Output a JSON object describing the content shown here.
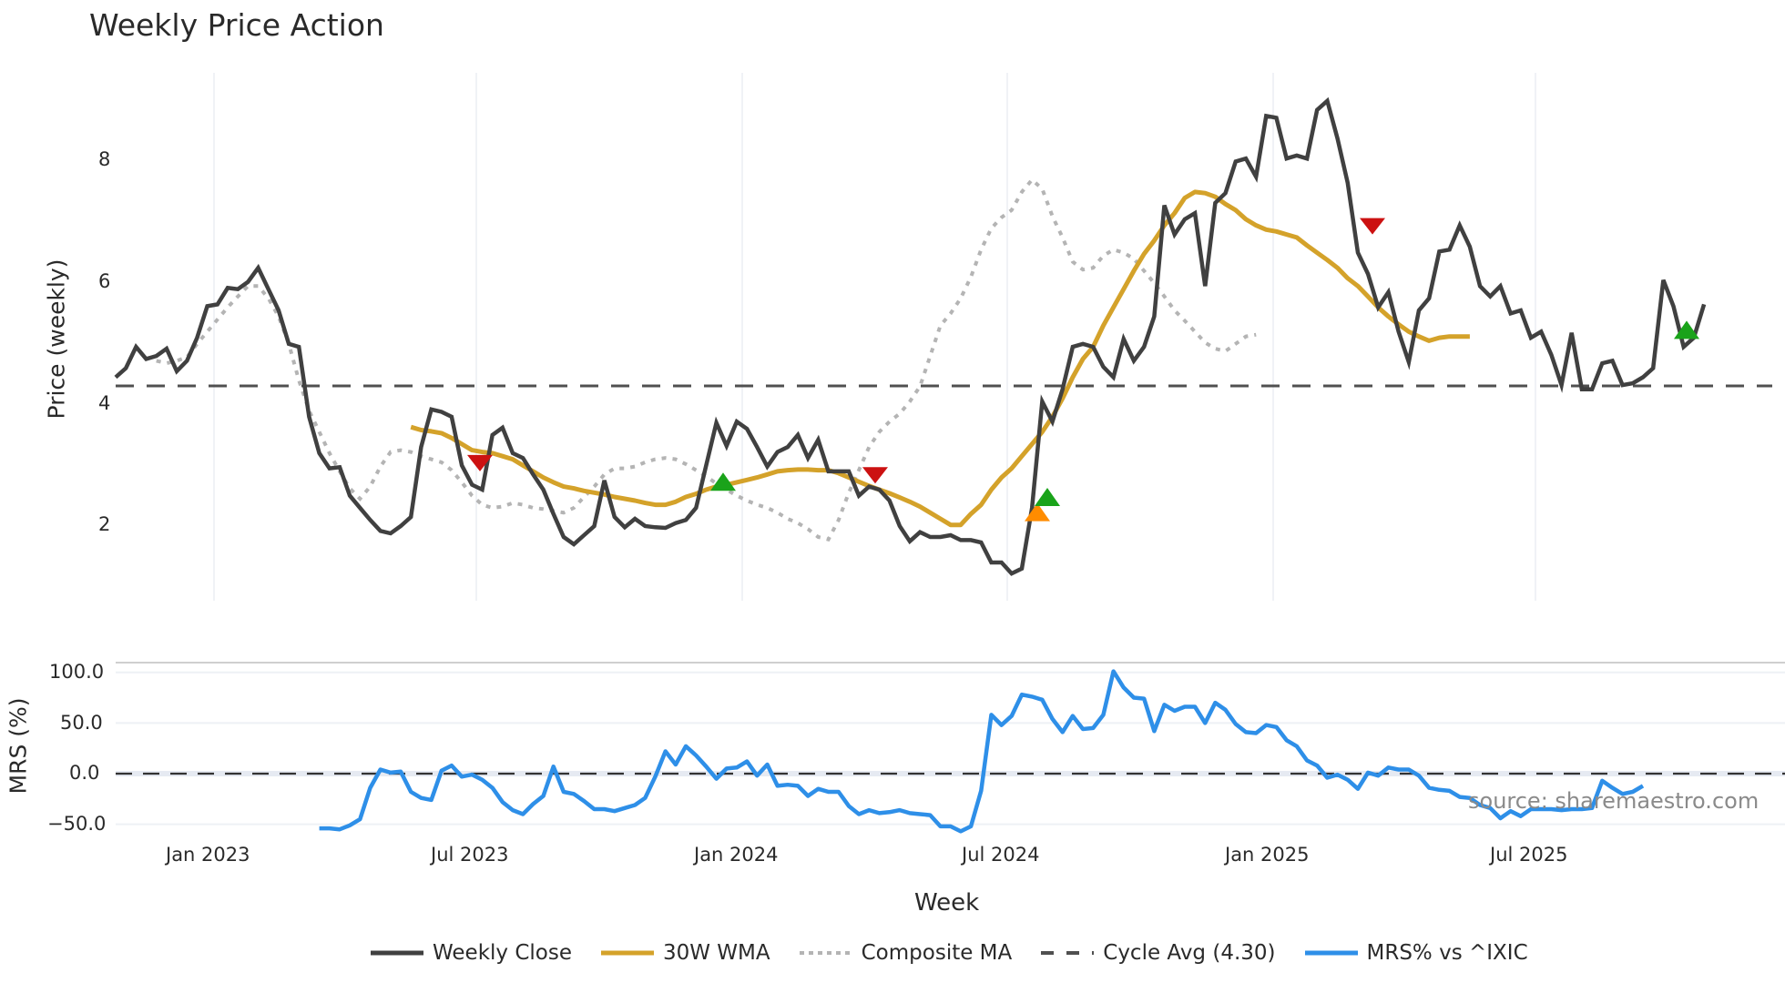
{
  "header": {
    "title": "Weekly Price Action"
  },
  "watermark": "source: sharemaestro.com",
  "legend": [
    {
      "label": "Weekly Close",
      "color": "#404040",
      "style": "solid"
    },
    {
      "label": "30W WMA",
      "color": "#D4A22A",
      "style": "solid"
    },
    {
      "label": "Composite MA",
      "color": "#B4B4B4",
      "style": "dotted"
    },
    {
      "label": "Cycle Avg (4.30)",
      "color": "#505050",
      "style": "dashed"
    },
    {
      "label": "MRS% vs ^IXIC",
      "color": "#2E8FE8",
      "style": "solid"
    }
  ],
  "chart_data": [
    {
      "type": "line",
      "title": "Weekly Price Action",
      "xlabel": "Week",
      "ylabel": "Price (weekly)",
      "yticks": [
        2,
        4,
        6,
        8
      ],
      "ylim": [
        0.9,
        9.6
      ],
      "xticks": [
        "Jan 2023",
        "Jul 2023",
        "Jan 2024",
        "Jul 2024",
        "Jan 2025",
        "Jul 2025"
      ],
      "x_start": "2022-11-21",
      "x_step": "1 week",
      "grid": "vertical",
      "cycle_avg": 4.3,
      "series": [
        {
          "name": "Weekly Close",
          "color": "#404040",
          "values": [
            4.45,
            4.6,
            4.95,
            4.75,
            4.8,
            4.92,
            4.55,
            4.72,
            5.1,
            5.62,
            5.65,
            5.92,
            5.9,
            6.02,
            6.25,
            5.9,
            5.55,
            5.0,
            4.95,
            3.8,
            3.2,
            2.95,
            2.97,
            2.5,
            2.3,
            2.1,
            1.92,
            1.88,
            2.0,
            2.15,
            3.3,
            3.92,
            3.88,
            3.8,
            3.0,
            2.68,
            2.6,
            3.5,
            3.62,
            3.2,
            3.12,
            2.85,
            2.6,
            2.2,
            1.82,
            1.7,
            1.85,
            2.0,
            2.75,
            2.15,
            1.98,
            2.12,
            2.0,
            1.98,
            1.97,
            2.05,
            2.1,
            2.3,
            3.0,
            3.7,
            3.32,
            3.72,
            3.6,
            3.3,
            2.98,
            3.22,
            3.3,
            3.5,
            3.12,
            3.42,
            2.9,
            2.9,
            2.9,
            2.5,
            2.65,
            2.6,
            2.42,
            2.0,
            1.75,
            1.9,
            1.82,
            1.82,
            1.85,
            1.77,
            1.77,
            1.73,
            1.4,
            1.4,
            1.22,
            1.3,
            2.3,
            4.05,
            3.72,
            4.25,
            4.95,
            5.0,
            4.95,
            4.62,
            4.45,
            5.08,
            4.72,
            4.95,
            5.45,
            7.28,
            6.8,
            7.05,
            7.15,
            5.95,
            7.32,
            7.48,
            8.0,
            8.05,
            7.75,
            8.75,
            8.72,
            8.05,
            8.1,
            8.05,
            8.85,
            9.0,
            8.38,
            7.65,
            6.5,
            6.15,
            5.6,
            5.85,
            5.2,
            4.7,
            5.55,
            5.75,
            6.52,
            6.55,
            6.95,
            6.6,
            5.95,
            5.78,
            5.95,
            5.5,
            5.55,
            5.1,
            5.2,
            4.82,
            4.32,
            5.18,
            4.25,
            4.25,
            4.68,
            4.72,
            4.32,
            4.35,
            4.45,
            4.6,
            6.05,
            5.62,
            4.95,
            5.1,
            5.65
          ]
        },
        {
          "name": "30W WMA",
          "color": "#D4A22A",
          "start_index": 29,
          "values": [
            3.63,
            3.58,
            3.56,
            3.53,
            3.45,
            3.35,
            3.25,
            3.22,
            3.2,
            3.15,
            3.1,
            3.0,
            2.9,
            2.8,
            2.72,
            2.65,
            2.62,
            2.58,
            2.55,
            2.52,
            2.48,
            2.45,
            2.42,
            2.38,
            2.35,
            2.35,
            2.4,
            2.48,
            2.53,
            2.6,
            2.65,
            2.68,
            2.72,
            2.76,
            2.8,
            2.85,
            2.9,
            2.92,
            2.93,
            2.93,
            2.92,
            2.92,
            2.87,
            2.8,
            2.73,
            2.66,
            2.6,
            2.54,
            2.47,
            2.4,
            2.32,
            2.22,
            2.12,
            2.02,
            2.02,
            2.2,
            2.35,
            2.6,
            2.8,
            2.95,
            3.15,
            3.35,
            3.55,
            3.8,
            4.1,
            4.45,
            4.75,
            4.95,
            5.3,
            5.6,
            5.9,
            6.2,
            6.48,
            6.7,
            6.95,
            7.15,
            7.4,
            7.5,
            7.48,
            7.42,
            7.3,
            7.2,
            7.05,
            6.95,
            6.88,
            6.85,
            6.8,
            6.75,
            6.62,
            6.5,
            6.38,
            6.25,
            6.08,
            5.95,
            5.78,
            5.6,
            5.45,
            5.32,
            5.2,
            5.12,
            5.05,
            5.1,
            5.12,
            5.12,
            5.12
          ]
        },
        {
          "name": "Composite MA",
          "color": "#B4B4B4",
          "start_index": 4,
          "values": [
            4.72,
            4.68,
            4.72,
            4.78,
            5.0,
            5.2,
            5.4,
            5.6,
            5.78,
            5.95,
            5.95,
            5.75,
            5.45,
            5.0,
            4.4,
            3.9,
            3.55,
            3.2,
            2.9,
            2.62,
            2.45,
            2.65,
            2.98,
            3.22,
            3.25,
            3.22,
            3.15,
            3.1,
            3.05,
            2.92,
            2.72,
            2.5,
            2.35,
            2.3,
            2.32,
            2.38,
            2.35,
            2.3,
            2.28,
            2.25,
            2.22,
            2.3,
            2.48,
            2.65,
            2.85,
            2.95,
            2.95,
            2.98,
            3.05,
            3.1,
            3.12,
            3.1,
            3.02,
            2.92,
            2.82,
            2.7,
            2.6,
            2.5,
            2.42,
            2.35,
            2.3,
            2.22,
            2.12,
            2.05,
            1.95,
            1.82,
            1.78,
            2.1,
            2.55,
            2.92,
            3.3,
            3.55,
            3.72,
            3.85,
            4.05,
            4.3,
            4.8,
            5.3,
            5.5,
            5.75,
            6.1,
            6.55,
            6.9,
            7.08,
            7.2,
            7.5,
            7.7,
            7.55,
            7.1,
            6.75,
            6.35,
            6.22,
            6.25,
            6.45,
            6.55,
            6.5,
            6.4,
            6.2,
            6.0,
            5.78,
            5.55,
            5.38,
            5.2,
            5.02,
            4.92,
            4.88,
            5.0,
            5.12,
            5.15
          ]
        }
      ],
      "markers": [
        {
          "type": "sell",
          "shape": "triangle-down",
          "color": "#CC1111",
          "x": "2023-07",
          "y": 3.05
        },
        {
          "type": "buy",
          "shape": "triangle-up",
          "color": "#1AA31A",
          "x": "2023-12",
          "y": 2.7
        },
        {
          "type": "sell",
          "shape": "triangle-down",
          "color": "#CC1111",
          "x": "2024-04",
          "y": 2.85
        },
        {
          "type": "buy",
          "shape": "triangle-up",
          "color": "#FF8C00",
          "x": "2024-07",
          "y": 2.2
        },
        {
          "type": "buy",
          "shape": "triangle-up",
          "color": "#1AA31A",
          "x": "2024-08",
          "y": 2.45
        },
        {
          "type": "sell",
          "shape": "triangle-down",
          "color": "#CC1111",
          "x": "2025-04",
          "y": 6.95
        },
        {
          "type": "buy",
          "shape": "triangle-up",
          "color": "#1AA31A",
          "x": "2025-10",
          "y": 5.2
        }
      ]
    },
    {
      "type": "line",
      "ylabel": "MRS (%)",
      "yticks": [
        "100.0",
        "50.0",
        "0.0",
        "−50.0"
      ],
      "ylim": [
        -62,
        110
      ],
      "reference_line": 0,
      "series": [
        {
          "name": "MRS% vs ^IXIC",
          "color": "#2E8FE8",
          "start_index": 20,
          "values": [
            -54,
            -54,
            -55,
            -51,
            -45,
            -14,
            4,
            1,
            2,
            -18,
            -24,
            -26,
            3,
            8,
            -3,
            -1,
            -6,
            -14,
            -28,
            -36,
            -40,
            -30,
            -22,
            7,
            -18,
            -20,
            -27,
            -35,
            -35,
            -37,
            -34,
            -31,
            -24,
            -3,
            22,
            9,
            27,
            18,
            7,
            -5,
            5,
            6,
            12,
            -2,
            9,
            -12,
            -11,
            -12,
            -22,
            -15,
            -18,
            -18,
            -32,
            -40,
            -36,
            -39,
            -38,
            -36,
            -39,
            -40,
            -41,
            -52,
            -52,
            -57,
            -52,
            -17,
            58,
            48,
            57,
            78,
            76,
            73,
            54,
            41,
            57,
            44,
            45,
            58,
            101,
            85,
            75,
            74,
            42,
            68,
            62,
            66,
            66,
            50,
            70,
            63,
            49,
            41,
            40,
            48,
            46,
            33,
            27,
            13,
            8,
            -4,
            -1,
            -6,
            -15,
            1,
            -2,
            6,
            4,
            4,
            -2,
            -14,
            -16,
            -17,
            -23,
            -24,
            -31,
            -34,
            -44,
            -37,
            -42,
            -35,
            -35,
            -35,
            -36,
            -35,
            -35,
            -34,
            -7,
            -14,
            -20,
            -18,
            -12
          ]
        }
      ]
    }
  ]
}
